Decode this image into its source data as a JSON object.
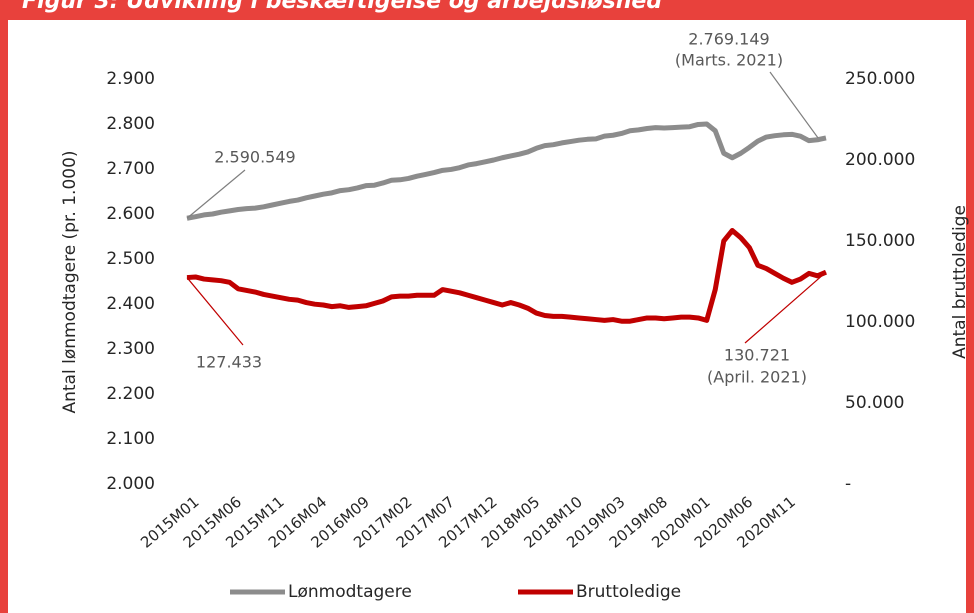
{
  "chart_data": {
    "type": "line",
    "title": "Figur 3: Udvikling i beskæftigelse og arbejdsløshed",
    "y_label": "Antal lønmodtagere (pr. 1.000)",
    "y2_label": "Antal bruttoledige",
    "categories": [
      "2015M01",
      null,
      null,
      null,
      null,
      "2015M06",
      null,
      null,
      null,
      null,
      "2015M11",
      null,
      null,
      null,
      null,
      "2016M04",
      null,
      null,
      null,
      null,
      "2016M09",
      null,
      null,
      null,
      null,
      "2017M02",
      null,
      null,
      null,
      null,
      "2017M07",
      null,
      null,
      null,
      null,
      "2017M12",
      null,
      null,
      null,
      null,
      "2018M05",
      null,
      null,
      null,
      null,
      "2018M10",
      null,
      null,
      null,
      null,
      "2019M03",
      null,
      null,
      null,
      null,
      "2019M08",
      null,
      null,
      null,
      null,
      "2020M01",
      null,
      null,
      null,
      null,
      "2020M06",
      null,
      null,
      null,
      null,
      "2020M11",
      null,
      null,
      null,
      null,
      null
    ],
    "series": [
      {
        "name": "Lønmodtagere",
        "color": "#8c8c8c",
        "axis": "y",
        "values": [
          2590.549,
          2594,
          2598,
          2600,
          2604,
          2607,
          2610,
          2612,
          2613,
          2616,
          2620,
          2624,
          2628,
          2631,
          2636,
          2640,
          2644,
          2647,
          2652,
          2654,
          2658,
          2663,
          2664,
          2669,
          2675,
          2676,
          2679,
          2684,
          2688,
          2692,
          2697,
          2699,
          2703,
          2709,
          2712,
          2716,
          2720,
          2725,
          2729,
          2733,
          2738,
          2746,
          2752,
          2754,
          2758,
          2761,
          2764,
          2766,
          2767,
          2773,
          2775,
          2779,
          2785,
          2787,
          2790,
          2792,
          2791,
          2792,
          2793,
          2794,
          2799,
          2800,
          2785,
          2735,
          2725,
          2735,
          2748,
          2762,
          2771,
          2774,
          2776,
          2777,
          2773,
          2763,
          2765,
          2769.149
        ]
      },
      {
        "name": "Bruttoledige",
        "color": "#c00000",
        "axis": "y2",
        "values": [
          127433,
          127800,
          126500,
          126000,
          125500,
          124500,
          120500,
          119500,
          118500,
          117000,
          116000,
          115000,
          114000,
          113500,
          112000,
          111000,
          110500,
          109500,
          110000,
          109000,
          109500,
          110000,
          111500,
          113000,
          115500,
          116000,
          116000,
          116500,
          116500,
          116500,
          120000,
          119000,
          118000,
          116500,
          115000,
          113500,
          112000,
          110500,
          112000,
          110500,
          108500,
          105500,
          104000,
          103500,
          103500,
          103000,
          102500,
          102000,
          101500,
          101000,
          101500,
          100500,
          100500,
          101500,
          102500,
          102500,
          102000,
          102500,
          103000,
          103000,
          102500,
          101000,
          120000,
          150000,
          156500,
          152000,
          146000,
          135000,
          133000,
          130000,
          127000,
          124500,
          126500,
          130000,
          128500,
          130721
        ]
      }
    ],
    "ylim": [
      2000,
      2900
    ],
    "yticks": [
      {
        "value": 2000,
        "label": "2.000"
      },
      {
        "value": 2100,
        "label": "2.100"
      },
      {
        "value": 2200,
        "label": "2.200"
      },
      {
        "value": 2300,
        "label": "2.300"
      },
      {
        "value": 2400,
        "label": "2.400"
      },
      {
        "value": 2500,
        "label": "2.500"
      },
      {
        "value": 2600,
        "label": "2.600"
      },
      {
        "value": 2700,
        "label": "2.700"
      },
      {
        "value": 2800,
        "label": "2.800"
      },
      {
        "value": 2900,
        "label": "2.900"
      }
    ],
    "y2lim": [
      0,
      250000
    ],
    "y2ticks": [
      {
        "value": 0,
        "label": "-"
      },
      {
        "value": 50000,
        "label": "50.000"
      },
      {
        "value": 100000,
        "label": "100.000"
      },
      {
        "value": 150000,
        "label": "150.000"
      },
      {
        "value": 200000,
        "label": "200.000"
      },
      {
        "value": 250000,
        "label": "250.000"
      }
    ],
    "annotations": [
      "2.590.549",
      "127.433",
      "2.769.149",
      "(Marts. 2021)",
      "130.721",
      "(April. 2021)"
    ],
    "legend": "bottom"
  }
}
